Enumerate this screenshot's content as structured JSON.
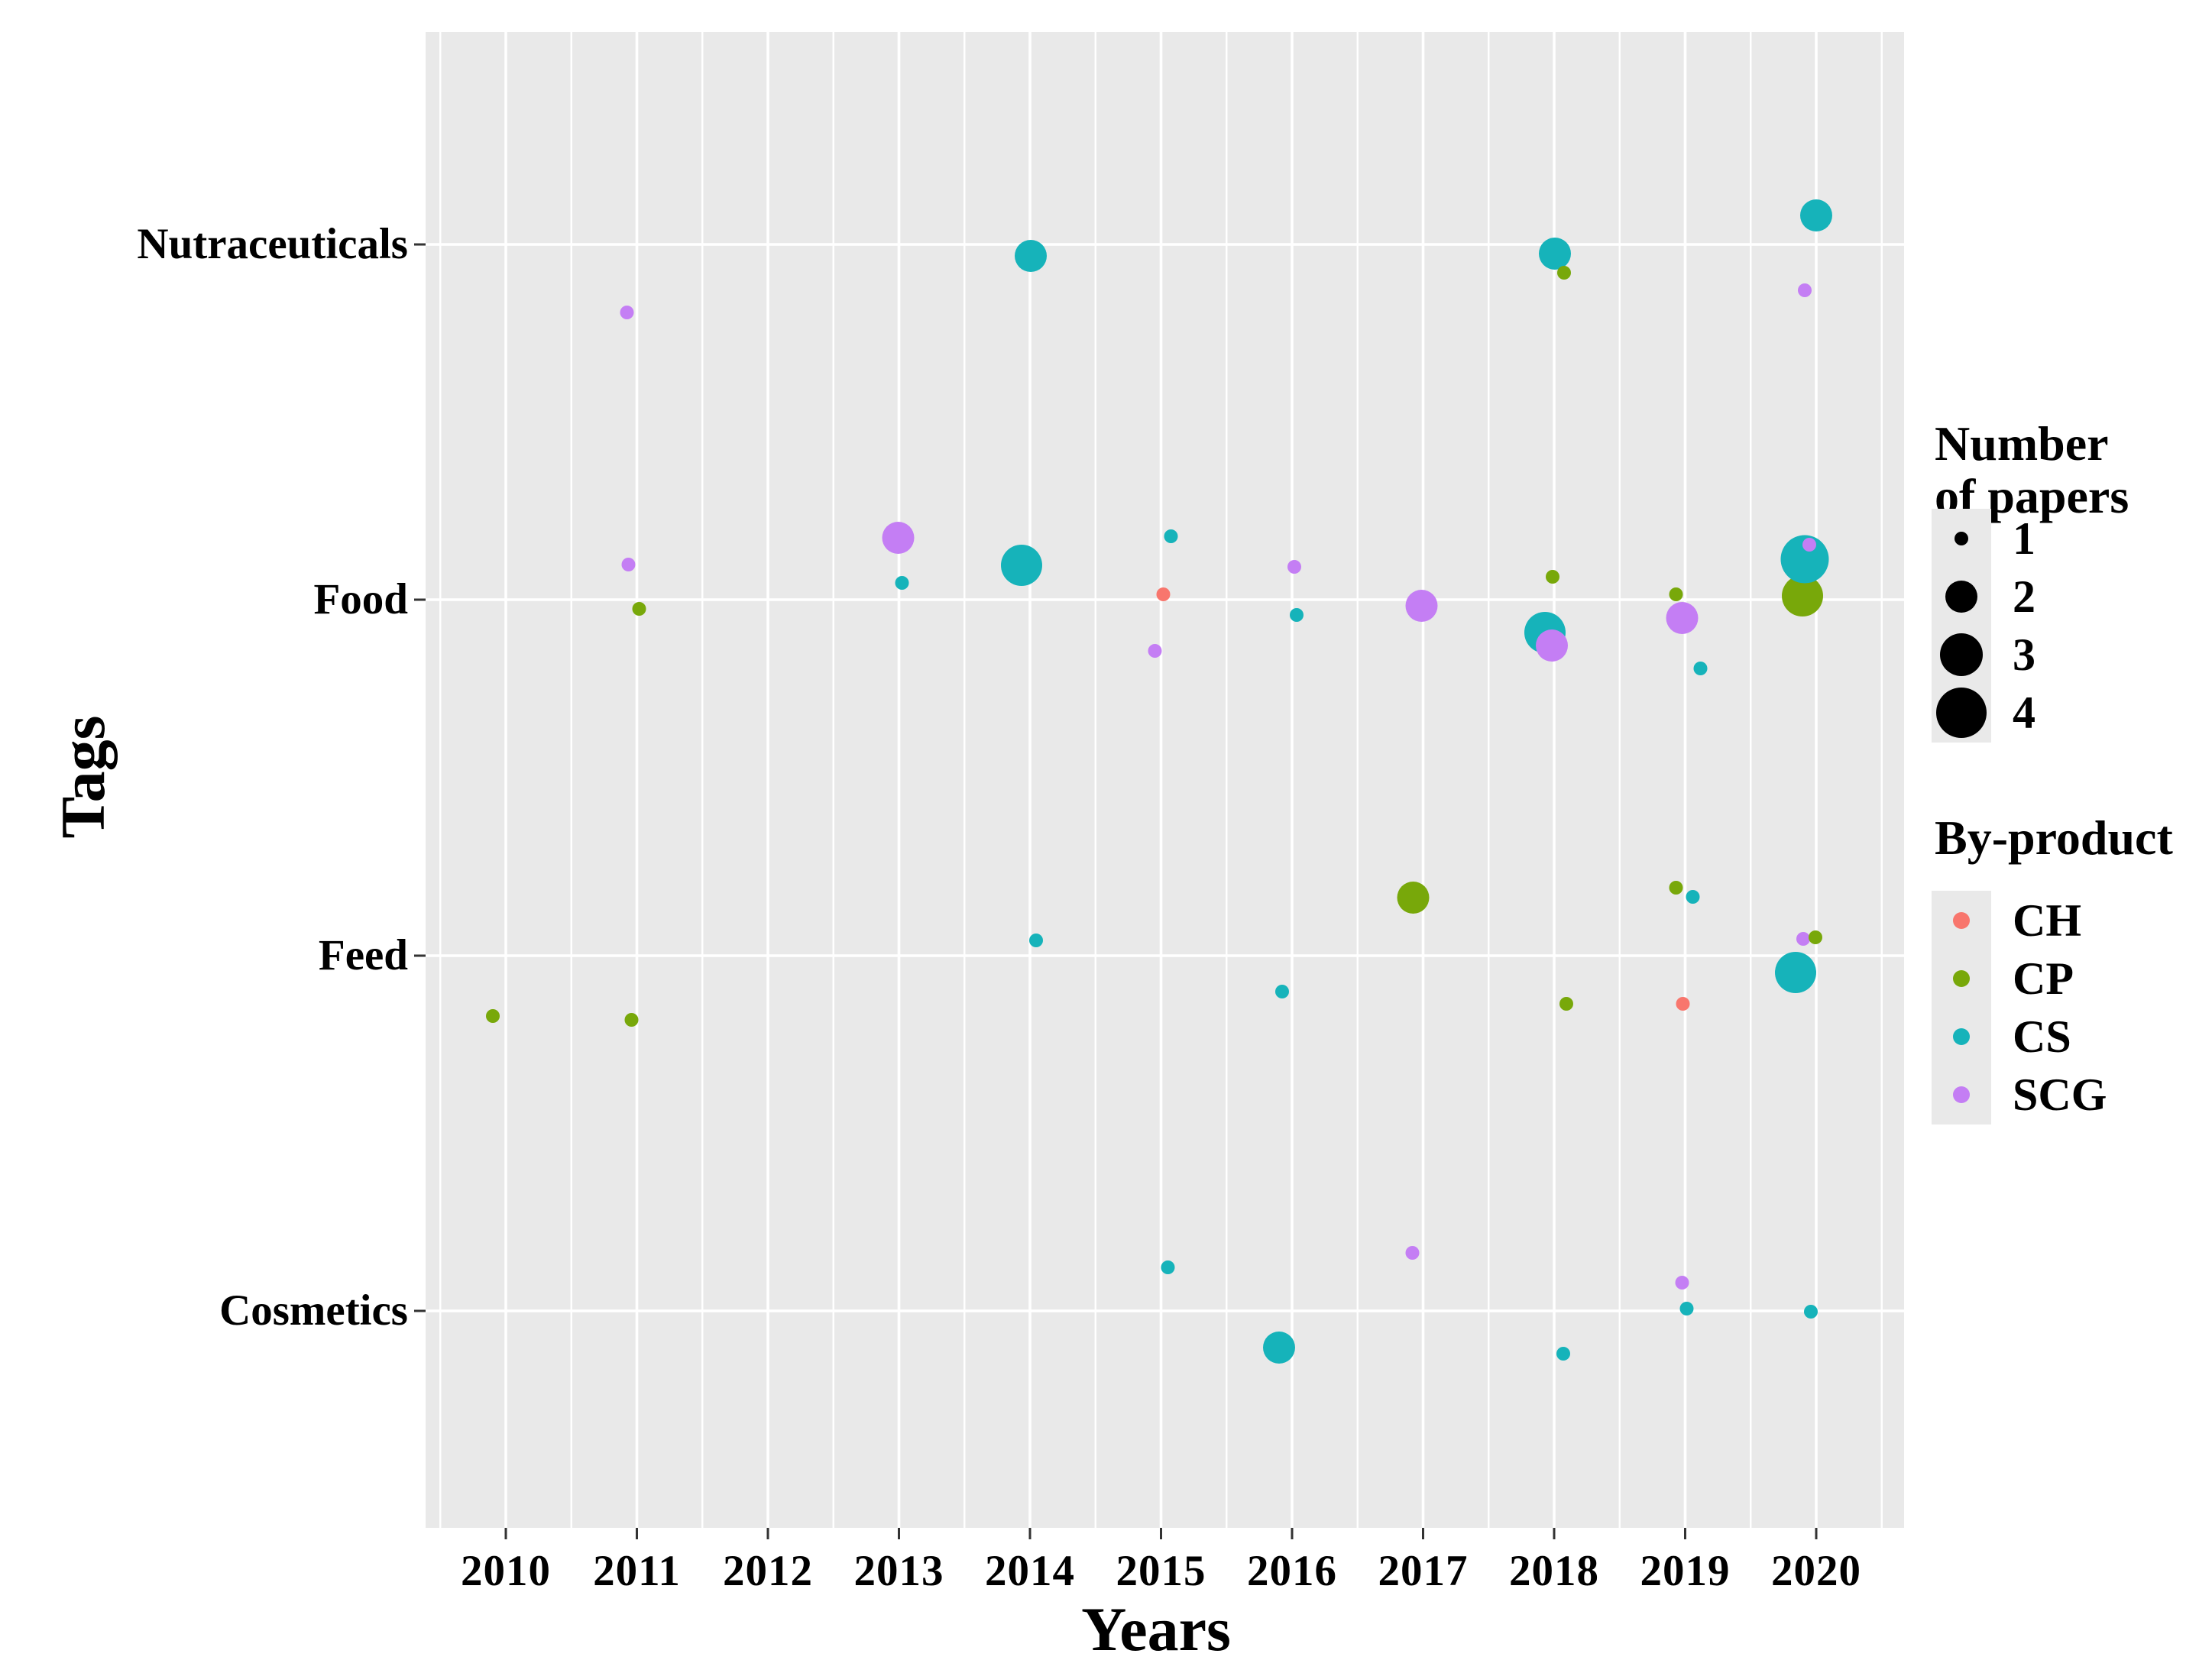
{
  "figure_title": "",
  "chart_data": {
    "type": "scatter",
    "subtype": "bubble-jitter",
    "xlabel": "Years",
    "ylabel": "Tags",
    "x_ticks": [
      2010,
      2011,
      2012,
      2013,
      2014,
      2015,
      2016,
      2017,
      2018,
      2019,
      2020
    ],
    "y_categories": [
      "Nutraceuticals",
      "Food",
      "Feed",
      "Cosmetics"
    ],
    "panel_bg": "#e9e9e9",
    "grid_color": "#ffffff",
    "grid": "major-and-minor-x, major-y only",
    "legend_position": "right",
    "size_legend": {
      "title_line1": "Number",
      "title_line2": "of papers",
      "sizes": [
        1,
        2,
        3,
        4
      ]
    },
    "color_legend": {
      "title": "By-product",
      "entries": [
        {
          "label": "CH",
          "color": "#F8766D"
        },
        {
          "label": "CP",
          "color": "#78A80A"
        },
        {
          "label": "CS",
          "color": "#16B3BA"
        },
        {
          "label": "SCG",
          "color": "#C47EF4"
        }
      ]
    },
    "points": [
      {
        "year": 2011,
        "tag": "Nutraceuticals",
        "byproduct": "SCG",
        "papers": 1,
        "jx": -13,
        "jy": 89
      },
      {
        "year": 2014,
        "tag": "Nutraceuticals",
        "byproduct": "CS",
        "papers": 2,
        "jx": 1,
        "jy": 15
      },
      {
        "year": 2018,
        "tag": "Nutraceuticals",
        "byproduct": "CS",
        "papers": 2,
        "jx": 1,
        "jy": 12
      },
      {
        "year": 2018,
        "tag": "Nutraceuticals",
        "byproduct": "CP",
        "papers": 1,
        "jx": 13,
        "jy": 37
      },
      {
        "year": 2020,
        "tag": "Nutraceuticals",
        "byproduct": "CS",
        "papers": 2,
        "jx": 0,
        "jy": -38
      },
      {
        "year": 2020,
        "tag": "Nutraceuticals",
        "byproduct": "SCG",
        "papers": 1,
        "jx": -15,
        "jy": 60
      },
      {
        "year": 2011,
        "tag": "Food",
        "byproduct": "SCG",
        "papers": 1,
        "jx": -11,
        "jy": -46
      },
      {
        "year": 2011,
        "tag": "Food",
        "byproduct": "CP",
        "papers": 1,
        "jx": 3,
        "jy": 12
      },
      {
        "year": 2013,
        "tag": "Food",
        "byproduct": "SCG",
        "papers": 2,
        "jx": -1,
        "jy": -81
      },
      {
        "year": 2013,
        "tag": "Food",
        "byproduct": "CS",
        "papers": 1,
        "jx": 4,
        "jy": -22
      },
      {
        "year": 2014,
        "tag": "Food",
        "byproduct": "CS",
        "papers": 3,
        "jx": -11,
        "jy": -45
      },
      {
        "year": 2015,
        "tag": "Food",
        "byproduct": "CS",
        "papers": 1,
        "jx": 13,
        "jy": -83
      },
      {
        "year": 2015,
        "tag": "Food",
        "byproduct": "CH",
        "papers": 1,
        "jx": 3,
        "jy": -7
      },
      {
        "year": 2015,
        "tag": "Food",
        "byproduct": "SCG",
        "papers": 1,
        "jx": -8,
        "jy": 67
      },
      {
        "year": 2016,
        "tag": "Food",
        "byproduct": "SCG",
        "papers": 1,
        "jx": 3,
        "jy": -43
      },
      {
        "year": 2016,
        "tag": "Food",
        "byproduct": "CS",
        "papers": 1,
        "jx": 6,
        "jy": 20
      },
      {
        "year": 2017,
        "tag": "Food",
        "byproduct": "SCG",
        "papers": 2,
        "jx": -2,
        "jy": 8
      },
      {
        "year": 2018,
        "tag": "Food",
        "byproduct": "CP",
        "papers": 1,
        "jx": -2,
        "jy": -30
      },
      {
        "year": 2018,
        "tag": "Food",
        "byproduct": "CS",
        "papers": 3,
        "jx": -12,
        "jy": 43
      },
      {
        "year": 2018,
        "tag": "Food",
        "byproduct": "SCG",
        "papers": 2,
        "jx": -3,
        "jy": 60
      },
      {
        "year": 2019,
        "tag": "Food",
        "byproduct": "CP",
        "papers": 1,
        "jx": -12,
        "jy": -7
      },
      {
        "year": 2019,
        "tag": "Food",
        "byproduct": "SCG",
        "papers": 2,
        "jx": -4,
        "jy": 24
      },
      {
        "year": 2019,
        "tag": "Food",
        "byproduct": "CS",
        "papers": 1,
        "jx": 20,
        "jy": 90
      },
      {
        "year": 2020,
        "tag": "Food",
        "byproduct": "CP",
        "papers": 3,
        "jx": -18,
        "jy": -5
      },
      {
        "year": 2020,
        "tag": "Food",
        "byproduct": "CS",
        "papers": 4,
        "jx": -15,
        "jy": -53
      },
      {
        "year": 2020,
        "tag": "Food",
        "byproduct": "SCG",
        "papers": 1,
        "jx": -9,
        "jy": -72
      },
      {
        "year": 2010,
        "tag": "Feed",
        "byproduct": "CP",
        "papers": 1,
        "jx": -17,
        "jy": 79
      },
      {
        "year": 2011,
        "tag": "Feed",
        "byproduct": "CP",
        "papers": 1,
        "jx": -7,
        "jy": 84
      },
      {
        "year": 2014,
        "tag": "Feed",
        "byproduct": "CS",
        "papers": 1,
        "jx": 8,
        "jy": -20
      },
      {
        "year": 2016,
        "tag": "Feed",
        "byproduct": "CS",
        "papers": 1,
        "jx": -13,
        "jy": 47
      },
      {
        "year": 2017,
        "tag": "Feed",
        "byproduct": "CP",
        "papers": 2,
        "jx": -13,
        "jy": -76
      },
      {
        "year": 2018,
        "tag": "Feed",
        "byproduct": "CP",
        "papers": 1,
        "jx": 16,
        "jy": 63
      },
      {
        "year": 2019,
        "tag": "Feed",
        "byproduct": "CP",
        "papers": 1,
        "jx": -12,
        "jy": -89
      },
      {
        "year": 2019,
        "tag": "Feed",
        "byproduct": "CS",
        "papers": 1,
        "jx": 10,
        "jy": -77
      },
      {
        "year": 2019,
        "tag": "Feed",
        "byproduct": "CH",
        "papers": 1,
        "jx": -3,
        "jy": 63
      },
      {
        "year": 2020,
        "tag": "Feed",
        "byproduct": "CS",
        "papers": 3,
        "jx": -27,
        "jy": 22
      },
      {
        "year": 2020,
        "tag": "Feed",
        "byproduct": "SCG",
        "papers": 1,
        "jx": -17,
        "jy": -22
      },
      {
        "year": 2020,
        "tag": "Feed",
        "byproduct": "CP",
        "papers": 1,
        "jx": -1,
        "jy": -24
      },
      {
        "year": 2015,
        "tag": "Cosmetics",
        "byproduct": "CS",
        "papers": 1,
        "jx": 9,
        "jy": -57
      },
      {
        "year": 2016,
        "tag": "Cosmetics",
        "byproduct": "CS",
        "papers": 2,
        "jx": -17,
        "jy": 48
      },
      {
        "year": 2017,
        "tag": "Cosmetics",
        "byproduct": "SCG",
        "papers": 1,
        "jx": -14,
        "jy": -76
      },
      {
        "year": 2018,
        "tag": "Cosmetics",
        "byproduct": "CS",
        "papers": 1,
        "jx": 12,
        "jy": 56
      },
      {
        "year": 2019,
        "tag": "Cosmetics",
        "byproduct": "SCG",
        "papers": 1,
        "jx": -4,
        "jy": -37
      },
      {
        "year": 2019,
        "tag": "Cosmetics",
        "byproduct": "CS",
        "papers": 1,
        "jx": 2,
        "jy": -3
      },
      {
        "year": 2020,
        "tag": "Cosmetics",
        "byproduct": "CS",
        "papers": 1,
        "jx": -7,
        "jy": 1
      }
    ]
  }
}
